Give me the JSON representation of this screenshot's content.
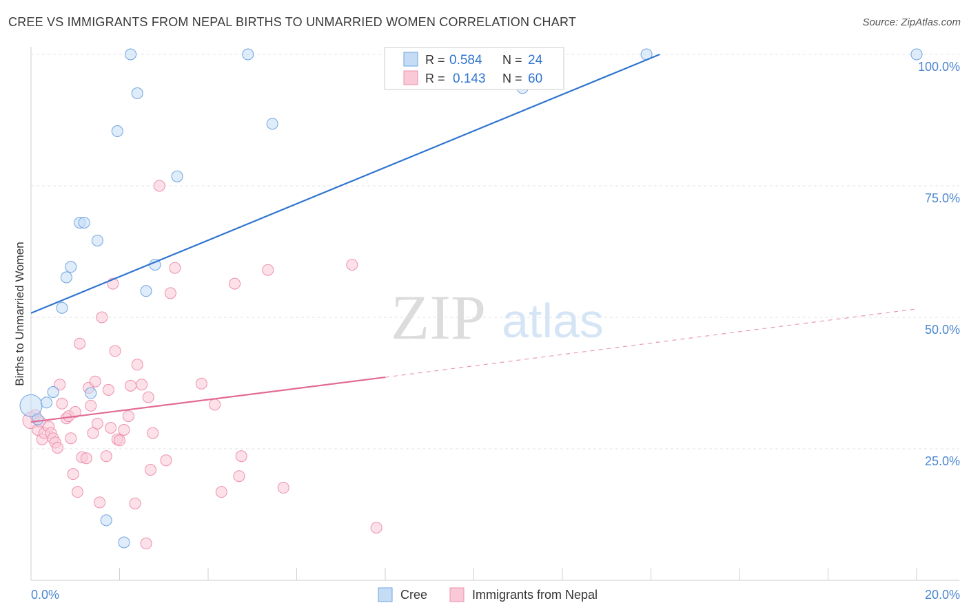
{
  "header": {
    "title": "CREE VS IMMIGRANTS FROM NEPAL BIRTHS TO UNMARRIED WOMEN CORRELATION CHART",
    "source": "Source: ZipAtlas.com"
  },
  "watermark": {
    "zip": "ZIP",
    "atlas": "atlas"
  },
  "chart_data": {
    "type": "scatter",
    "title": "CREE VS IMMIGRANTS FROM NEPAL BIRTHS TO UNMARRIED WOMEN CORRELATION CHART",
    "xlabel": "",
    "ylabel": "Births to Unmarried Women",
    "xlim": [
      0,
      20
    ],
    "ylim": [
      0,
      100
    ],
    "x_tick_labels": [
      "0.0%",
      "20.0%"
    ],
    "y_ticks": [
      25,
      50,
      75,
      100
    ],
    "y_tick_labels": [
      "25.0%",
      "50.0%",
      "75.0%",
      "100.0%"
    ],
    "legend_stats": [
      {
        "r_label": "R = ",
        "r_value": "0.584",
        "n_label": "N = ",
        "n_value": "24"
      },
      {
        "r_label": "R = ",
        "r_value": "0.143",
        "n_label": "N = ",
        "n_value": "60"
      }
    ],
    "series": [
      {
        "name": "Cree",
        "color": "#6fa3e0",
        "fill": "#c5dcf5",
        "line_color": "#2f74d0",
        "trend": {
          "x0": 0,
          "y0": 50.8,
          "x1": 14.2,
          "y1": 100,
          "dashed_to": null
        },
        "points": [
          [
            0.0,
            33.2
          ],
          [
            0.35,
            33.8
          ],
          [
            0.5,
            35.8
          ],
          [
            0.7,
            51.8
          ],
          [
            0.8,
            57.6
          ],
          [
            0.9,
            59.6
          ],
          [
            1.1,
            68.0
          ],
          [
            1.2,
            68.0
          ],
          [
            1.5,
            64.6
          ],
          [
            1.35,
            35.6
          ],
          [
            1.7,
            11.4
          ],
          [
            1.95,
            85.4
          ],
          [
            2.1,
            7.2
          ],
          [
            2.25,
            100
          ],
          [
            2.4,
            92.6
          ],
          [
            2.6,
            55.0
          ],
          [
            2.8,
            60.0
          ],
          [
            3.3,
            76.8
          ],
          [
            4.9,
            100
          ],
          [
            5.45,
            86.8
          ],
          [
            11.1,
            93.6
          ],
          [
            13.9,
            100
          ],
          [
            20.0,
            100
          ],
          [
            0.15,
            30.6
          ]
        ]
      },
      {
        "name": "Immigrants from Nepal",
        "color": "#ee8fac",
        "fill": "#f9c9d7",
        "line_color": "#e26a93",
        "trend": {
          "x0": 0,
          "y0": 30.1,
          "x1": 8.0,
          "y1": 38.6,
          "dashed_to": {
            "x": 20.0,
            "y": 51.6
          }
        },
        "points": [
          [
            0.0,
            30.4
          ],
          [
            0.1,
            31.4
          ],
          [
            0.15,
            28.6
          ],
          [
            0.2,
            30.2
          ],
          [
            0.25,
            26.8
          ],
          [
            0.3,
            28.0
          ],
          [
            0.4,
            29.2
          ],
          [
            0.45,
            28.0
          ],
          [
            0.5,
            27.0
          ],
          [
            0.55,
            26.2
          ],
          [
            0.6,
            25.2
          ],
          [
            0.65,
            37.2
          ],
          [
            0.7,
            33.6
          ],
          [
            0.8,
            30.8
          ],
          [
            0.85,
            31.2
          ],
          [
            0.9,
            27.0
          ],
          [
            0.95,
            20.2
          ],
          [
            1.0,
            32.0
          ],
          [
            1.05,
            16.8
          ],
          [
            1.1,
            45.0
          ],
          [
            1.15,
            23.4
          ],
          [
            1.25,
            23.2
          ],
          [
            1.3,
            36.6
          ],
          [
            1.35,
            33.2
          ],
          [
            1.4,
            28.0
          ],
          [
            1.45,
            37.8
          ],
          [
            1.5,
            29.8
          ],
          [
            1.55,
            14.8
          ],
          [
            1.6,
            50.0
          ],
          [
            1.7,
            23.6
          ],
          [
            1.75,
            36.2
          ],
          [
            1.8,
            29.0
          ],
          [
            1.85,
            56.4
          ],
          [
            1.9,
            43.6
          ],
          [
            1.95,
            26.8
          ],
          [
            2.0,
            26.6
          ],
          [
            2.1,
            28.6
          ],
          [
            2.2,
            31.2
          ],
          [
            2.25,
            37.0
          ],
          [
            2.35,
            14.6
          ],
          [
            2.4,
            41.0
          ],
          [
            2.5,
            37.2
          ],
          [
            2.6,
            7.0
          ],
          [
            2.65,
            34.8
          ],
          [
            2.7,
            21.0
          ],
          [
            2.75,
            28.0
          ],
          [
            2.9,
            75.0
          ],
          [
            3.05,
            22.8
          ],
          [
            3.15,
            54.6
          ],
          [
            3.25,
            59.4
          ],
          [
            3.85,
            37.4
          ],
          [
            4.15,
            33.4
          ],
          [
            4.3,
            16.8
          ],
          [
            4.6,
            56.4
          ],
          [
            4.7,
            19.8
          ],
          [
            4.75,
            23.6
          ],
          [
            5.35,
            59.0
          ],
          [
            5.7,
            17.6
          ],
          [
            7.25,
            60.0
          ],
          [
            7.8,
            10.0
          ]
        ]
      }
    ]
  }
}
